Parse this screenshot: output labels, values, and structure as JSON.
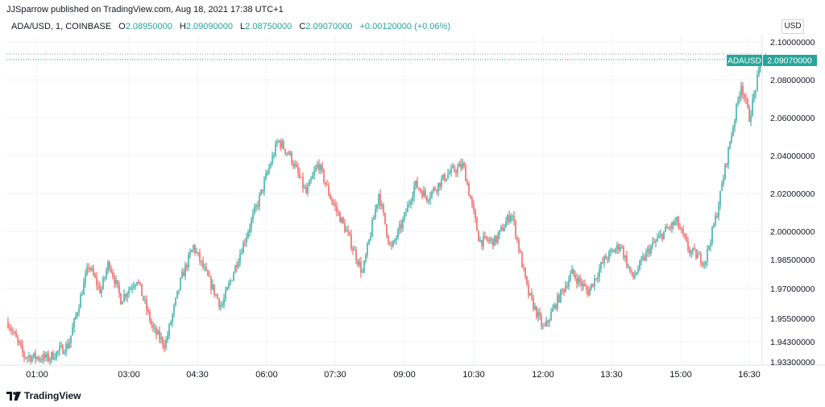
{
  "header": {
    "text": "JJSparrow published on TradingView.com, Aug 18, 2021 17:38 UTC+1"
  },
  "legend": {
    "symbol": "ADA/USD, 1, COINBASE",
    "open_label": "O",
    "open": "2.08950000",
    "high_label": "H",
    "high": "2.09090000",
    "low_label": "L",
    "low": "2.08750000",
    "close_label": "C",
    "close": "2.09070000",
    "change": "+0.00120000 (+0.06%)"
  },
  "currency_button": "USD",
  "price_tag": {
    "symbol": "ADAUSD",
    "price": "2.09070000",
    "color": "#26a69a"
  },
  "footer": {
    "brand": "TradingView"
  },
  "colors": {
    "up": "#26a69a",
    "down": "#ef5350",
    "grid": "#f0f3fa"
  },
  "chart_data": {
    "type": "candlestick",
    "title": "ADA/USD, 1, COINBASE",
    "x_ticks": [
      "01:00",
      "03:00",
      "04:30",
      "06:00",
      "07:30",
      "09:00",
      "10:30",
      "12:00",
      "13:30",
      "15:00",
      "16:30"
    ],
    "y_ticks": [
      "2.10000000",
      "2.08000000",
      "2.06000000",
      "2.04000000",
      "2.02000000",
      "2.00000000",
      "1.98500000",
      "1.97000000",
      "1.95500000",
      "1.94300000",
      "1.93300000"
    ],
    "ylim": [
      1.932,
      2.102
    ],
    "last_price": 2.0907,
    "grid": true,
    "path": [
      [
        0,
        1.952
      ],
      [
        20,
        1.934
      ],
      [
        50,
        1.933
      ],
      [
        75,
        1.94
      ],
      [
        100,
        1.982
      ],
      [
        115,
        1.968
      ],
      [
        125,
        1.984
      ],
      [
        140,
        1.964
      ],
      [
        160,
        1.975
      ],
      [
        180,
        1.948
      ],
      [
        195,
        1.94
      ],
      [
        215,
        1.975
      ],
      [
        230,
        1.992
      ],
      [
        245,
        1.978
      ],
      [
        265,
        1.96
      ],
      [
        285,
        1.985
      ],
      [
        310,
        2.015
      ],
      [
        335,
        2.048
      ],
      [
        350,
        2.04
      ],
      [
        370,
        2.02
      ],
      [
        385,
        2.036
      ],
      [
        400,
        2.018
      ],
      [
        420,
        2.0
      ],
      [
        440,
        1.978
      ],
      [
        460,
        2.02
      ],
      [
        475,
        1.99
      ],
      [
        490,
        2.005
      ],
      [
        505,
        2.025
      ],
      [
        520,
        2.018
      ],
      [
        545,
        2.03
      ],
      [
        565,
        2.035
      ],
      [
        585,
        1.995
      ],
      [
        605,
        1.995
      ],
      [
        625,
        2.01
      ],
      [
        645,
        1.968
      ],
      [
        665,
        1.948
      ],
      [
        680,
        1.962
      ],
      [
        700,
        1.978
      ],
      [
        720,
        1.968
      ],
      [
        740,
        1.985
      ],
      [
        760,
        1.993
      ],
      [
        775,
        1.975
      ],
      [
        795,
        1.99
      ],
      [
        815,
        2.0
      ],
      [
        830,
        2.005
      ],
      [
        845,
        1.99
      ],
      [
        865,
        1.984
      ],
      [
        880,
        2.01
      ],
      [
        895,
        2.045
      ],
      [
        910,
        2.078
      ],
      [
        920,
        2.06
      ],
      [
        935,
        2.09
      ],
      [
        940,
        2.0907
      ]
    ]
  }
}
